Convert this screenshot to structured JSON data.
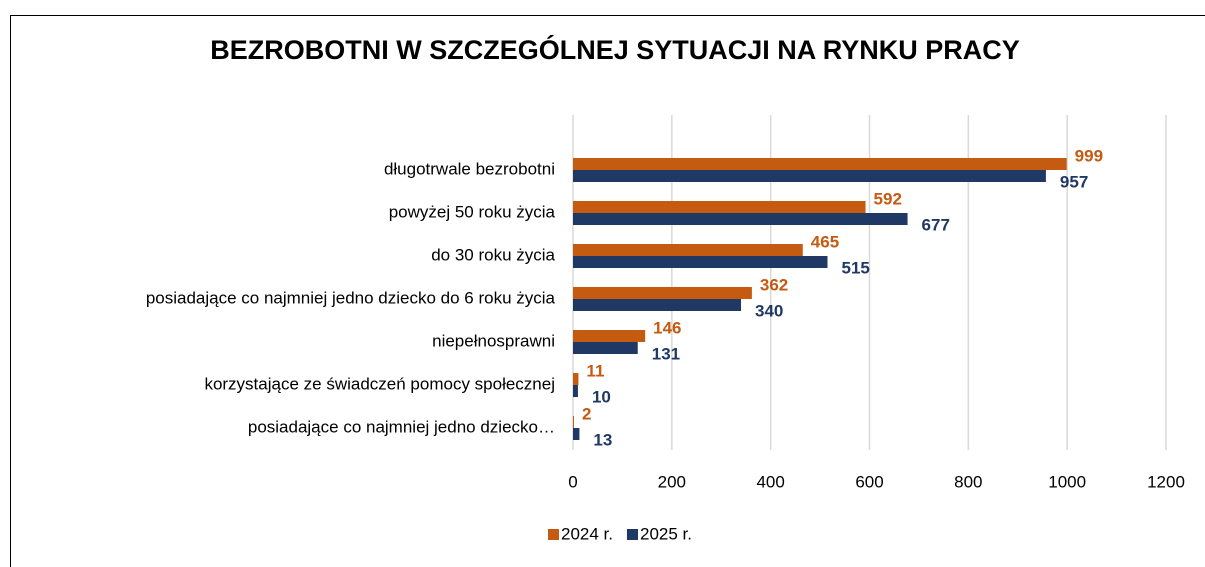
{
  "chart_data": {
    "type": "hbar",
    "title": "BEZROBOTNI W SZCZEGÓLNEJ SYTUACJI NA RYNKU PRACY",
    "categories": [
      "długotrwale bezrobotni",
      "powyżej 50 roku życia",
      "do 30 roku życia",
      "posiadające co najmniej jedno dziecko do 6 roku życia",
      "niepełnosprawni",
      "korzystające ze świadczeń pomocy społecznej",
      "posiadające co najmniej jedno dziecko…"
    ],
    "series": [
      {
        "name": "2024 r.",
        "color": "#c55a11",
        "values": [
          999,
          592,
          465,
          362,
          146,
          11,
          2
        ]
      },
      {
        "name": "2025 r.",
        "color": "#203864",
        "values": [
          957,
          677,
          515,
          340,
          131,
          10,
          13
        ]
      }
    ],
    "xlim": [
      0,
      1200
    ],
    "xticks": [
      0,
      200,
      400,
      600,
      800,
      1000,
      1200
    ],
    "grid": true,
    "legend": "bottom"
  }
}
